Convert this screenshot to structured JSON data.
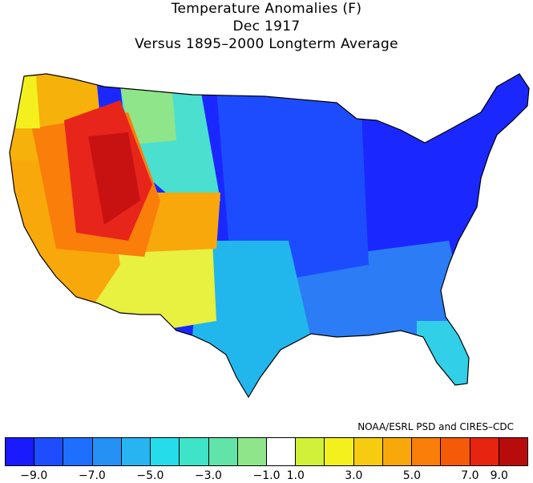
{
  "title": {
    "line1": "Temperature Anomalies (F)",
    "line2": "Dec 1917",
    "line3": "Versus 1895–2000 Longterm Average"
  },
  "credit": "NOAA/ESRL PSD and CIRES–CDC",
  "legend": {
    "colors": [
      "#1a1aff",
      "#1e4dff",
      "#1e6eff",
      "#2591f5",
      "#27b4f0",
      "#25dcea",
      "#3fe3c8",
      "#62e3a8",
      "#8fe58a",
      "#ffffff",
      "#d0f03a",
      "#f4f01e",
      "#f7cc10",
      "#f9a80c",
      "#fa7e0a",
      "#f45a08",
      "#e62410",
      "#b80c0c"
    ],
    "ticks": [
      "−9.0",
      "−7.0",
      "−5.0",
      "−3.0",
      "−1.0",
      "1.0",
      "3.0",
      "5.0",
      "7.0",
      "9.0"
    ]
  },
  "map": {
    "description_colors": {
      "northwest": "#f6b10a",
      "great_basin": "#e8251a",
      "southwest": "#f9a80c",
      "rockies_south": "#f0f02a",
      "plains_north": "#4bdfd0",
      "plains_south": "#22b7ec",
      "midwest": "#1d4cff",
      "northeast": "#1a28ff",
      "southeast": "#2c7cf5",
      "florida": "#32cfe8"
    }
  }
}
